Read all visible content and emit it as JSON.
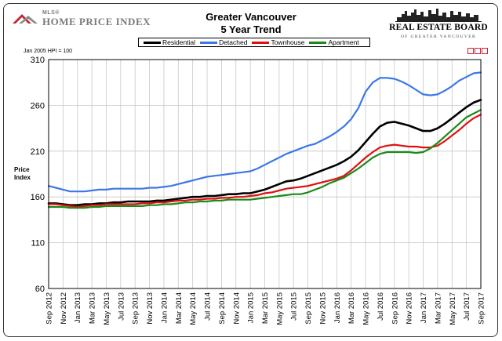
{
  "header": {
    "logo_small": "MLS®",
    "logo_main": "Home Price Index",
    "title": "Greater Vancouver",
    "subtitle": "5 Year Trend",
    "board_name": "REAL ESTATE BOARD",
    "board_sub": "OF GREATER VANCOUVER"
  },
  "hpi_note": "Jan 2005 HPI = 100",
  "colors": {
    "residential": "#000000",
    "detached": "#3c78e6",
    "townhouse": "#e01010",
    "apartment": "#1a8a1a",
    "grid": "#c8c8c8"
  },
  "chart_data": {
    "type": "line",
    "title": "Greater Vancouver 5 Year Trend",
    "xlabel": "",
    "ylabel": "Price Index",
    "ylim": [
      60,
      310
    ],
    "yticks": [
      60,
      110,
      160,
      210,
      260,
      310
    ],
    "x": [
      "Sep 2012",
      "Oct 2012",
      "Nov 2012",
      "Dec 2012",
      "Jan 2013",
      "Feb 2013",
      "Mar 2013",
      "Apr 2013",
      "May 2013",
      "Jun 2013",
      "Jul 2013",
      "Aug 2013",
      "Sep 2013",
      "Oct 2013",
      "Nov 2013",
      "Dec 2013",
      "Jan 2014",
      "Feb 2014",
      "Mar 2014",
      "Apr 2014",
      "May 2014",
      "Jun 2014",
      "Jul 2014",
      "Aug 2014",
      "Sep 2014",
      "Oct 2014",
      "Nov 2014",
      "Dec 2014",
      "Jan 2015",
      "Feb 2015",
      "Mar 2015",
      "Apr 2015",
      "May 2015",
      "Jun 2015",
      "Jul 2015",
      "Aug 2015",
      "Sep 2015",
      "Oct 2015",
      "Nov 2015",
      "Dec 2015",
      "Jan 2016",
      "Feb 2016",
      "Mar 2016",
      "Apr 2016",
      "May 2016",
      "Jun 2016",
      "Jul 2016",
      "Aug 2016",
      "Sep 2016",
      "Oct 2016",
      "Nov 2016",
      "Dec 2016",
      "Jan 2017",
      "Feb 2017",
      "Mar 2017",
      "Apr 2017",
      "May 2017",
      "Jun 2017",
      "Jul 2017",
      "Aug 2017",
      "Sep 2017"
    ],
    "tick_labels": [
      "Sep 2012",
      "Nov 2012",
      "Jan 2013",
      "Mar 2013",
      "May 2013",
      "Jul 2013",
      "Sep 2013",
      "Nov 2013",
      "Jan 2014",
      "Mar 2014",
      "May 2014",
      "Jul 2014",
      "Sep 2014",
      "Nov 2014",
      "Jan 2015",
      "Mar 2015",
      "May 2015",
      "Jul 2015",
      "Sep 2015",
      "Nov 2015",
      "Jan 2016",
      "Mar 2016",
      "May 2016",
      "Jul 2016",
      "Sep 2016",
      "Nov 2016",
      "Jan 2017",
      "Mar 2017",
      "May 2017",
      "Jul 2017",
      "Sep 2017"
    ],
    "series": [
      {
        "key": "residential",
        "name": "Residential",
        "values": [
          153,
          153,
          152,
          151,
          151,
          152,
          152,
          153,
          153,
          154,
          154,
          155,
          155,
          155,
          155,
          156,
          156,
          157,
          158,
          159,
          160,
          160,
          161,
          161,
          162,
          163,
          163,
          164,
          164,
          166,
          168,
          171,
          174,
          177,
          178,
          180,
          183,
          186,
          189,
          192,
          195,
          199,
          204,
          211,
          220,
          229,
          237,
          241,
          242,
          240,
          238,
          235,
          232,
          232,
          235,
          240,
          246,
          252,
          258,
          263,
          266
        ]
      },
      {
        "key": "detached",
        "name": "Detached",
        "values": [
          172,
          170,
          168,
          166,
          166,
          166,
          167,
          168,
          168,
          169,
          169,
          169,
          169,
          169,
          170,
          170,
          171,
          172,
          174,
          176,
          178,
          180,
          182,
          183,
          184,
          185,
          186,
          187,
          188,
          191,
          195,
          199,
          203,
          207,
          210,
          213,
          216,
          218,
          222,
          226,
          231,
          237,
          245,
          257,
          275,
          285,
          290,
          290,
          289,
          286,
          282,
          277,
          272,
          271,
          272,
          276,
          281,
          287,
          291,
          295,
          296
        ]
      },
      {
        "key": "townhouse",
        "name": "Townhouse",
        "values": [
          152,
          152,
          151,
          150,
          149,
          150,
          151,
          151,
          152,
          152,
          152,
          152,
          152,
          153,
          153,
          154,
          154,
          155,
          156,
          156,
          157,
          157,
          158,
          158,
          159,
          159,
          160,
          160,
          161,
          162,
          164,
          165,
          167,
          169,
          170,
          171,
          172,
          174,
          176,
          178,
          180,
          183,
          189,
          196,
          203,
          209,
          214,
          216,
          217,
          216,
          215,
          215,
          214,
          214,
          216,
          221,
          227,
          233,
          240,
          246,
          250
        ]
      },
      {
        "key": "apartment",
        "name": "Apartment",
        "values": [
          149,
          149,
          149,
          148,
          148,
          148,
          149,
          149,
          150,
          150,
          150,
          150,
          150,
          150,
          151,
          151,
          152,
          152,
          153,
          154,
          154,
          155,
          155,
          156,
          156,
          157,
          157,
          157,
          157,
          158,
          159,
          160,
          161,
          162,
          163,
          163,
          165,
          168,
          171,
          175,
          178,
          181,
          186,
          191,
          197,
          203,
          207,
          209,
          209,
          209,
          209,
          208,
          209,
          213,
          219,
          226,
          233,
          240,
          247,
          251,
          255
        ]
      }
    ]
  }
}
